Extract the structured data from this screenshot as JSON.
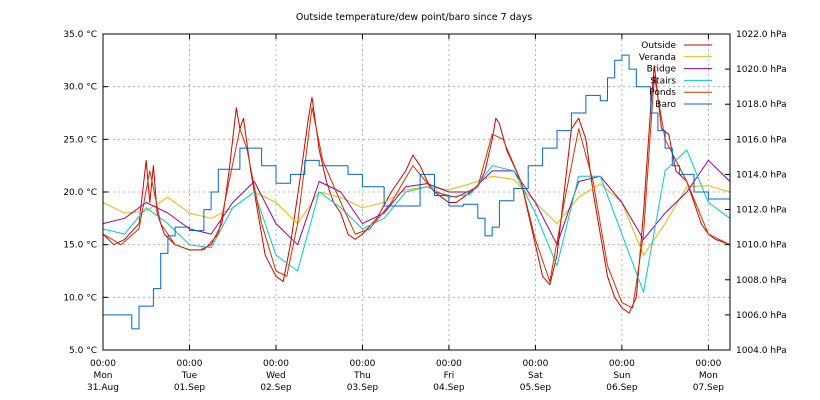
{
  "chart_data": {
    "type": "line",
    "title": "Outside temperature/dew point/baro since 7 days",
    "x_unit": "hours since Mon 31.Aug 00:00",
    "x_range": [
      0,
      174
    ],
    "x_ticks": [
      {
        "x": 0,
        "time": "00:00",
        "day": "Mon",
        "date": "31.Aug"
      },
      {
        "x": 24,
        "time": "00:00",
        "day": "Tue",
        "date": "01.Sep"
      },
      {
        "x": 48,
        "time": "00:00",
        "day": "Wed",
        "date": "02.Sep"
      },
      {
        "x": 72,
        "time": "00:00",
        "day": "Thu",
        "date": "03.Sep"
      },
      {
        "x": 96,
        "time": "00:00",
        "day": "Fri",
        "date": "04.Sep"
      },
      {
        "x": 120,
        "time": "00:00",
        "day": "Sat",
        "date": "05.Sep"
      },
      {
        "x": 144,
        "time": "00:00",
        "day": "Sun",
        "date": "06.Sep"
      },
      {
        "x": 168,
        "time": "00:00",
        "day": "Mon",
        "date": "07.Sep"
      }
    ],
    "y_left": {
      "range": [
        5,
        35
      ],
      "ticks": [
        5,
        10,
        15,
        20,
        25,
        30,
        35
      ],
      "tick_labels": [
        "5.0 °C",
        "10.0 °C",
        "15.0 °C",
        "20.0 °C",
        "25.0 °C",
        "30.0 °C",
        "35.0 °C"
      ]
    },
    "y_right": {
      "range": [
        1004,
        1022
      ],
      "ticks": [
        1004,
        1006,
        1008,
        1010,
        1012,
        1014,
        1016,
        1018,
        1020,
        1022
      ],
      "tick_labels": [
        "1004.0 hPa",
        "1006.0 hPa",
        "1008.0 hPa",
        "1010.0 hPa",
        "1012.0 hPa",
        "1014.0 hPa",
        "1016.0 hPa",
        "1018.0 hPa",
        "1020.0 hPa",
        "1022.0 hPa"
      ]
    },
    "grid": true,
    "legend_position": "top-right",
    "series": [
      {
        "name": "Outside",
        "color": "#cc0000",
        "axis": "left",
        "points": [
          [
            0,
            16
          ],
          [
            3,
            15
          ],
          [
            6,
            15.5
          ],
          [
            10,
            17
          ],
          [
            12,
            23
          ],
          [
            13,
            19
          ],
          [
            14,
            22.5
          ],
          [
            15,
            18
          ],
          [
            17,
            16
          ],
          [
            20,
            15
          ],
          [
            24,
            14.5
          ],
          [
            27,
            14.5
          ],
          [
            30,
            15
          ],
          [
            33,
            17
          ],
          [
            35,
            22
          ],
          [
            37,
            28
          ],
          [
            38,
            26
          ],
          [
            39,
            27
          ],
          [
            41,
            22
          ],
          [
            43,
            18
          ],
          [
            45,
            14
          ],
          [
            48,
            12
          ],
          [
            50,
            11.5
          ],
          [
            52,
            15
          ],
          [
            55,
            22
          ],
          [
            57,
            27
          ],
          [
            58,
            29
          ],
          [
            60,
            24
          ],
          [
            62,
            21
          ],
          [
            64,
            19
          ],
          [
            66,
            18
          ],
          [
            68,
            16
          ],
          [
            70,
            15.5
          ],
          [
            72,
            16
          ],
          [
            76,
            17.5
          ],
          [
            80,
            20
          ],
          [
            84,
            22
          ],
          [
            86,
            23.5
          ],
          [
            88,
            22.5
          ],
          [
            90,
            21
          ],
          [
            92,
            20
          ],
          [
            94,
            19.5
          ],
          [
            96,
            19
          ],
          [
            98,
            19
          ],
          [
            100,
            19.5
          ],
          [
            104,
            20.5
          ],
          [
            106,
            22
          ],
          [
            108,
            25
          ],
          [
            109,
            27
          ],
          [
            110,
            26.5
          ],
          [
            112,
            24
          ],
          [
            114,
            22.5
          ],
          [
            116,
            21
          ],
          [
            118,
            18
          ],
          [
            120,
            15
          ],
          [
            122,
            12
          ],
          [
            124,
            11.2
          ],
          [
            126,
            14
          ],
          [
            128,
            20
          ],
          [
            130,
            26
          ],
          [
            132,
            27
          ],
          [
            134,
            25
          ],
          [
            136,
            20
          ],
          [
            138,
            16
          ],
          [
            140,
            12
          ],
          [
            142,
            10
          ],
          [
            144,
            9
          ],
          [
            146,
            8.5
          ],
          [
            148,
            10
          ],
          [
            150,
            18
          ],
          [
            152,
            28
          ],
          [
            153,
            32
          ],
          [
            155,
            26
          ],
          [
            157,
            25.5
          ],
          [
            159,
            22
          ],
          [
            162,
            21
          ],
          [
            164,
            19
          ],
          [
            166,
            17
          ],
          [
            168,
            16
          ],
          [
            170,
            15.5
          ],
          [
            174,
            15
          ]
        ]
      },
      {
        "name": "Veranda",
        "color": "#e6b800",
        "axis": "left",
        "points": [
          [
            0,
            19
          ],
          [
            6,
            18
          ],
          [
            12,
            18.2
          ],
          [
            18,
            19.5
          ],
          [
            24,
            18
          ],
          [
            30,
            17.5
          ],
          [
            36,
            18.5
          ],
          [
            42,
            20
          ],
          [
            48,
            19
          ],
          [
            54,
            17
          ],
          [
            60,
            20
          ],
          [
            66,
            19.5
          ],
          [
            72,
            18.5
          ],
          [
            78,
            19
          ],
          [
            84,
            20.2
          ],
          [
            90,
            20.5
          ],
          [
            96,
            20.2
          ],
          [
            102,
            20.8
          ],
          [
            108,
            21.5
          ],
          [
            114,
            21.2
          ],
          [
            120,
            19
          ],
          [
            126,
            17
          ],
          [
            132,
            19.5
          ],
          [
            138,
            20.8
          ],
          [
            144,
            19
          ],
          [
            150,
            14
          ],
          [
            156,
            17
          ],
          [
            162,
            20.5
          ],
          [
            168,
            20.6
          ],
          [
            174,
            20
          ]
        ]
      },
      {
        "name": "Bridge",
        "color": "#990099",
        "axis": "left",
        "points": [
          [
            0,
            17
          ],
          [
            6,
            17.5
          ],
          [
            12,
            19
          ],
          [
            18,
            18
          ],
          [
            24,
            16.5
          ],
          [
            30,
            16
          ],
          [
            36,
            19
          ],
          [
            42,
            21
          ],
          [
            48,
            17
          ],
          [
            54,
            15
          ],
          [
            60,
            21
          ],
          [
            66,
            20
          ],
          [
            72,
            17
          ],
          [
            78,
            18
          ],
          [
            84,
            20.5
          ],
          [
            90,
            20.8
          ],
          [
            96,
            20
          ],
          [
            102,
            20
          ],
          [
            108,
            22
          ],
          [
            114,
            22
          ],
          [
            120,
            19
          ],
          [
            126,
            15
          ],
          [
            132,
            21
          ],
          [
            138,
            21.5
          ],
          [
            144,
            19
          ],
          [
            150,
            15.5
          ],
          [
            156,
            18
          ],
          [
            162,
            20
          ],
          [
            168,
            23
          ],
          [
            174,
            21
          ]
        ]
      },
      {
        "name": "Stairs",
        "color": "#00cccc",
        "axis": "left",
        "points": [
          [
            0,
            16.5
          ],
          [
            6,
            16
          ],
          [
            12,
            18.5
          ],
          [
            18,
            17
          ],
          [
            24,
            15
          ],
          [
            30,
            14.7
          ],
          [
            36,
            18.5
          ],
          [
            42,
            20
          ],
          [
            48,
            14
          ],
          [
            54,
            12.5
          ],
          [
            60,
            20
          ],
          [
            66,
            18.5
          ],
          [
            72,
            16.5
          ],
          [
            78,
            17.5
          ],
          [
            84,
            20
          ],
          [
            90,
            20.5
          ],
          [
            96,
            19.5
          ],
          [
            102,
            19.8
          ],
          [
            108,
            22.5
          ],
          [
            114,
            22
          ],
          [
            120,
            18
          ],
          [
            126,
            13
          ],
          [
            132,
            21.5
          ],
          [
            138,
            21.5
          ],
          [
            144,
            16
          ],
          [
            150,
            10.5
          ],
          [
            156,
            22
          ],
          [
            162,
            24
          ],
          [
            168,
            19
          ],
          [
            174,
            17.5
          ]
        ]
      },
      {
        "name": "Ponds",
        "color": "#cc3300",
        "axis": "left",
        "points": [
          [
            0,
            16
          ],
          [
            5,
            15
          ],
          [
            10,
            16.5
          ],
          [
            13,
            22
          ],
          [
            16,
            17
          ],
          [
            20,
            15
          ],
          [
            24,
            14.5
          ],
          [
            28,
            14.5
          ],
          [
            32,
            16
          ],
          [
            35,
            21
          ],
          [
            38,
            26
          ],
          [
            40,
            24
          ],
          [
            44,
            17
          ],
          [
            48,
            12.5
          ],
          [
            51,
            12
          ],
          [
            54,
            17
          ],
          [
            58,
            28
          ],
          [
            61,
            23
          ],
          [
            66,
            19
          ],
          [
            70,
            16
          ],
          [
            74,
            16.5
          ],
          [
            80,
            19
          ],
          [
            86,
            22.5
          ],
          [
            92,
            20
          ],
          [
            98,
            19.5
          ],
          [
            104,
            20.5
          ],
          [
            108,
            25.5
          ],
          [
            111,
            25
          ],
          [
            116,
            21
          ],
          [
            120,
            15.5
          ],
          [
            124,
            11.5
          ],
          [
            128,
            19
          ],
          [
            132,
            26
          ],
          [
            136,
            21
          ],
          [
            140,
            13
          ],
          [
            144,
            9.5
          ],
          [
            147,
            9
          ],
          [
            150,
            16
          ],
          [
            153,
            31
          ],
          [
            156,
            25
          ],
          [
            162,
            21
          ],
          [
            168,
            16
          ],
          [
            174,
            15
          ]
        ]
      },
      {
        "name": "Baro",
        "color": "#0066cc",
        "axis": "right",
        "step": true,
        "points": [
          [
            0,
            1006
          ],
          [
            8,
            1006
          ],
          [
            8,
            1005.2
          ],
          [
            10,
            1005.2
          ],
          [
            10,
            1006.5
          ],
          [
            14,
            1007.5
          ],
          [
            16,
            1009.5
          ],
          [
            18,
            1010.5
          ],
          [
            20,
            1011
          ],
          [
            24,
            1010.8
          ],
          [
            28,
            1012
          ],
          [
            30,
            1013
          ],
          [
            32,
            1014.3
          ],
          [
            36,
            1014.3
          ],
          [
            38,
            1015.5
          ],
          [
            42,
            1015.5
          ],
          [
            44,
            1014.5
          ],
          [
            48,
            1013.5
          ],
          [
            52,
            1014
          ],
          [
            56,
            1014.8
          ],
          [
            60,
            1014.5
          ],
          [
            68,
            1014
          ],
          [
            72,
            1013.3
          ],
          [
            76,
            1013.3
          ],
          [
            78,
            1012.2
          ],
          [
            84,
            1012.2
          ],
          [
            88,
            1014
          ],
          [
            92,
            1012.8
          ],
          [
            96,
            1012.2
          ],
          [
            100,
            1012.3
          ],
          [
            104,
            1011.5
          ],
          [
            106,
            1010.5
          ],
          [
            108,
            1011
          ],
          [
            110,
            1012.5
          ],
          [
            114,
            1013.2
          ],
          [
            118,
            1014.5
          ],
          [
            122,
            1015.5
          ],
          [
            126,
            1016.5
          ],
          [
            130,
            1017.5
          ],
          [
            134,
            1018.5
          ],
          [
            138,
            1018.2
          ],
          [
            140,
            1019.5
          ],
          [
            142,
            1020.5
          ],
          [
            144,
            1020.8
          ],
          [
            146,
            1020
          ],
          [
            148,
            1019
          ],
          [
            152,
            1017.5
          ],
          [
            154,
            1016.5
          ],
          [
            156,
            1015.5
          ],
          [
            158,
            1014.5
          ],
          [
            160,
            1014
          ],
          [
            164,
            1013
          ],
          [
            168,
            1012.6
          ],
          [
            172,
            1012.6
          ],
          [
            174,
            1012.2
          ]
        ]
      }
    ]
  }
}
